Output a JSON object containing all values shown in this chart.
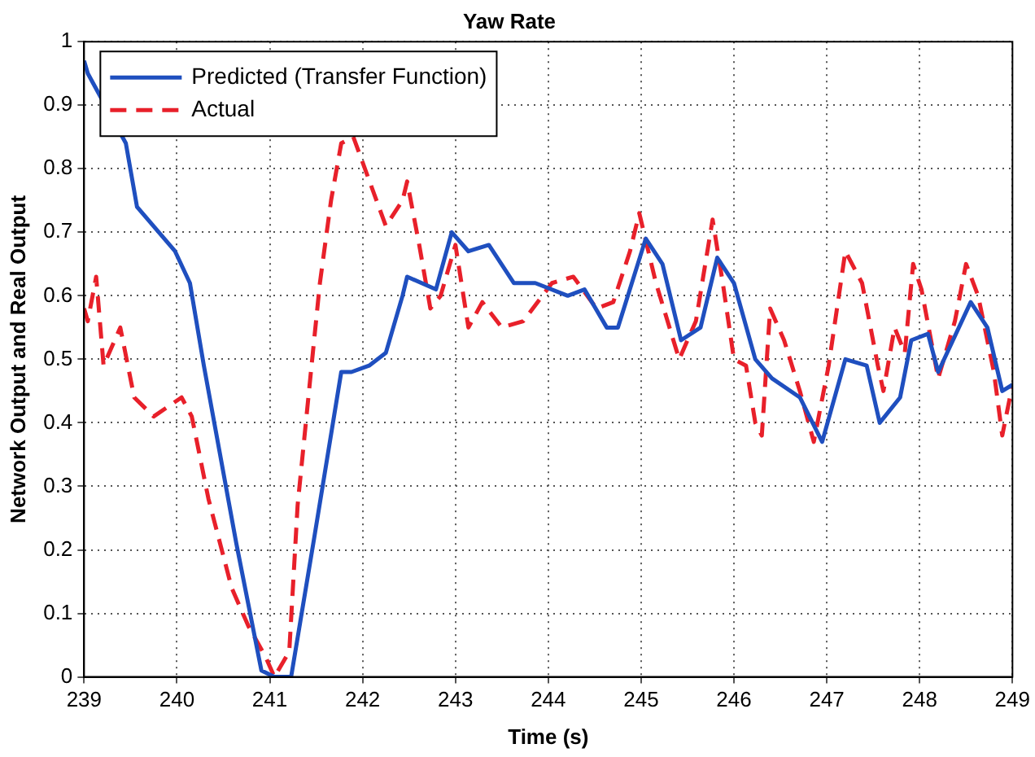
{
  "chart_data": {
    "type": "line",
    "title": "Yaw Rate",
    "xlabel": "Time (s)",
    "ylabel": "Network Output and Real Output",
    "xlim": [
      239,
      249
    ],
    "xticks": [
      239,
      240,
      241,
      242,
      243,
      244,
      245,
      246,
      247,
      248,
      249
    ],
    "ylim": [
      0,
      1
    ],
    "yticks": [
      0,
      0.1,
      0.2,
      0.3,
      0.4,
      0.5,
      0.6,
      0.7,
      0.8,
      0.9,
      1
    ],
    "grid": true,
    "legend": "top left",
    "marker": "none",
    "series": [
      {
        "name": "Predicted (Transfer Function)",
        "color": "#1f4fbf",
        "line_style": "solid",
        "x": [
          239,
          239.04,
          239.45,
          239.57,
          239.98,
          240.14,
          240.29,
          240.64,
          240.91,
          241.05,
          241.23,
          241.48,
          241.77,
          241.88,
          242.07,
          242.25,
          242.43,
          242.48,
          242.79,
          242.96,
          243.14,
          243.36,
          243.63,
          243.86,
          244.21,
          244.39,
          244.63,
          244.75,
          245.05,
          245.23,
          245.43,
          245.64,
          245.82,
          246,
          246.23,
          246.41,
          246.71,
          246.95,
          247.2,
          247.43,
          247.57,
          247.79,
          247.91,
          248.09,
          248.2,
          248.55,
          248.73,
          248.89,
          249
        ],
        "values": [
          0.97,
          0.95,
          0.84,
          0.74,
          0.67,
          0.62,
          0.49,
          0.21,
          0.01,
          0,
          0,
          0.22,
          0.48,
          0.48,
          0.49,
          0.51,
          0.6,
          0.63,
          0.61,
          0.7,
          0.67,
          0.68,
          0.62,
          0.62,
          0.6,
          0.61,
          0.55,
          0.55,
          0.69,
          0.65,
          0.53,
          0.55,
          0.66,
          0.62,
          0.5,
          0.47,
          0.44,
          0.37,
          0.5,
          0.49,
          0.4,
          0.44,
          0.53,
          0.54,
          0.48,
          0.59,
          0.55,
          0.45,
          0.46
        ]
      },
      {
        "name": "Actual",
        "color": "#e8202a",
        "line_style": "dashed",
        "x": [
          239,
          239.04,
          239.13,
          239.21,
          239.39,
          239.54,
          239.75,
          240.05,
          240.16,
          240.34,
          240.59,
          240.77,
          240.96,
          241.05,
          241.21,
          241.3,
          241.45,
          241.54,
          241.66,
          241.77,
          241.9,
          242.25,
          242.43,
          242.48,
          242.61,
          242.73,
          242.84,
          243,
          243.14,
          243.29,
          243.5,
          243.73,
          244.04,
          244.27,
          244.52,
          244.7,
          244.88,
          244.98,
          245.16,
          245.41,
          245.59,
          245.77,
          245.88,
          246,
          246.13,
          246.23,
          246.3,
          246.39,
          246.54,
          246.71,
          246.86,
          247.02,
          247.2,
          247.38,
          247.55,
          247.61,
          247.73,
          247.84,
          247.93,
          248.02,
          248.2,
          248.38,
          248.5,
          248.63,
          248.8,
          248.89,
          249
        ],
        "values": [
          0.58,
          0.56,
          0.63,
          0.49,
          0.55,
          0.44,
          0.41,
          0.44,
          0.41,
          0.28,
          0.14,
          0.08,
          0.03,
          0,
          0.04,
          0.27,
          0.49,
          0.62,
          0.75,
          0.84,
          0.85,
          0.71,
          0.75,
          0.78,
          0.68,
          0.58,
          0.6,
          0.68,
          0.55,
          0.59,
          0.55,
          0.56,
          0.62,
          0.63,
          0.58,
          0.59,
          0.67,
          0.73,
          0.62,
          0.5,
          0.56,
          0.72,
          0.62,
          0.5,
          0.49,
          0.4,
          0.38,
          0.58,
          0.53,
          0.45,
          0.37,
          0.49,
          0.67,
          0.62,
          0.49,
          0.45,
          0.55,
          0.51,
          0.65,
          0.61,
          0.47,
          0.56,
          0.65,
          0.6,
          0.48,
          0.38,
          0.46
        ]
      }
    ]
  }
}
